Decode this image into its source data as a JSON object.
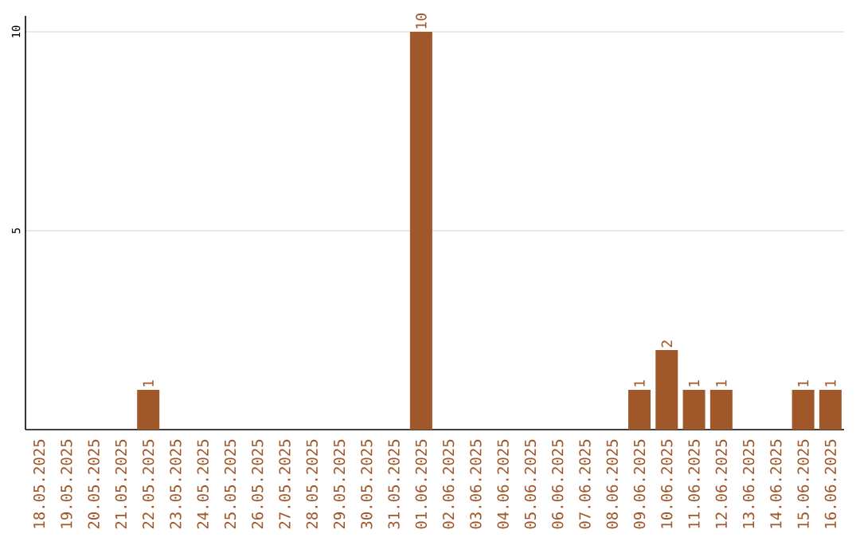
{
  "chart_data": {
    "type": "bar",
    "categories": [
      "18.05.2025",
      "19.05.2025",
      "20.05.2025",
      "21.05.2025",
      "22.05.2025",
      "23.05.2025",
      "24.05.2025",
      "25.05.2025",
      "26.05.2025",
      "27.05.2025",
      "28.05.2025",
      "29.05.2025",
      "30.05.2025",
      "31.05.2025",
      "01.06.2025",
      "02.06.2025",
      "03.06.2025",
      "04.06.2025",
      "05.06.2025",
      "06.06.2025",
      "07.06.2025",
      "08.06.2025",
      "09.06.2025",
      "10.06.2025",
      "11.06.2025",
      "12.06.2025",
      "13.06.2025",
      "14.06.2025",
      "15.06.2025",
      "16.06.2025"
    ],
    "values": [
      0,
      0,
      0,
      0,
      1,
      0,
      0,
      0,
      0,
      0,
      0,
      0,
      0,
      0,
      10,
      0,
      0,
      0,
      0,
      0,
      0,
      0,
      1,
      2,
      1,
      1,
      0,
      0,
      1,
      1
    ],
    "value_labels": [
      null,
      null,
      null,
      null,
      "1",
      null,
      null,
      null,
      null,
      null,
      null,
      null,
      null,
      null,
      "10",
      null,
      null,
      null,
      null,
      null,
      null,
      null,
      "1",
      "2",
      "1",
      "1",
      null,
      null,
      "1",
      "1"
    ],
    "color": "#a0572a",
    "ylim": [
      0,
      10.4
    ],
    "yticks": [
      5,
      10
    ],
    "grid": "y"
  }
}
